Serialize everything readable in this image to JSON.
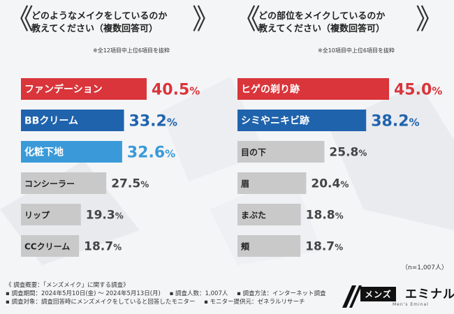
{
  "left_panel": {
    "question_line1": "どのようなメイクをしているのか",
    "question_line2": "教えてください（複数回答可）",
    "note": "※全12項目中上位6項目を抜粋"
  },
  "right_panel": {
    "question_line1": "どの部位をメイクしているのか",
    "question_line2": "教えてください（複数回答可）",
    "note": "※全10項目中上位6項目を抜粋"
  },
  "brackets": {
    "open": "《",
    "close": "》"
  },
  "sample_size": "（n=1,007人）",
  "footer": {
    "line1": "《 調査概要：「メンズメイク」に関する調査》",
    "line2": [
      "▪ 調査期間：2024年5月10日(金) ～ 2024年5月13日(月)",
      "▪ 調査人数：1,007人",
      "▪ 調査方法：インターネット調査"
    ],
    "line3": [
      "▪ 調査対象：調査回答時にメンズメイクをしていると回答したモニター",
      "▪ モニター提供元：ゼネラルリサーチ"
    ]
  },
  "logo": {
    "box_text": "メンズ",
    "main_text": "エミナル",
    "sub_text": "Men's Eminal"
  },
  "colors": {
    "red": "#d9353a",
    "blue": "#1f63ad",
    "lightblue": "#3a9ad9",
    "gray": "#c9c9c9"
  },
  "chart_data": [
    {
      "type": "bar",
      "orientation": "horizontal",
      "categories": [
        "ファンデーション",
        "BBクリーム",
        "化粧下地",
        "コンシーラー",
        "リップ",
        "CCクリーム"
      ],
      "values": [
        40.5,
        33.2,
        32.6,
        27.5,
        19.3,
        18.7
      ],
      "unit": "%",
      "bar_colors": [
        "red",
        "blue",
        "lightblue",
        "gray",
        "gray",
        "gray"
      ]
    },
    {
      "type": "bar",
      "orientation": "horizontal",
      "categories": [
        "ヒゲの剃り跡",
        "シミやニキビ跡",
        "目の下",
        "眉",
        "まぶた",
        "頬"
      ],
      "values": [
        45.0,
        38.2,
        25.8,
        20.4,
        18.8,
        18.7
      ],
      "unit": "%",
      "bar_colors": [
        "red",
        "blue",
        "gray",
        "gray",
        "gray",
        "gray"
      ]
    }
  ]
}
